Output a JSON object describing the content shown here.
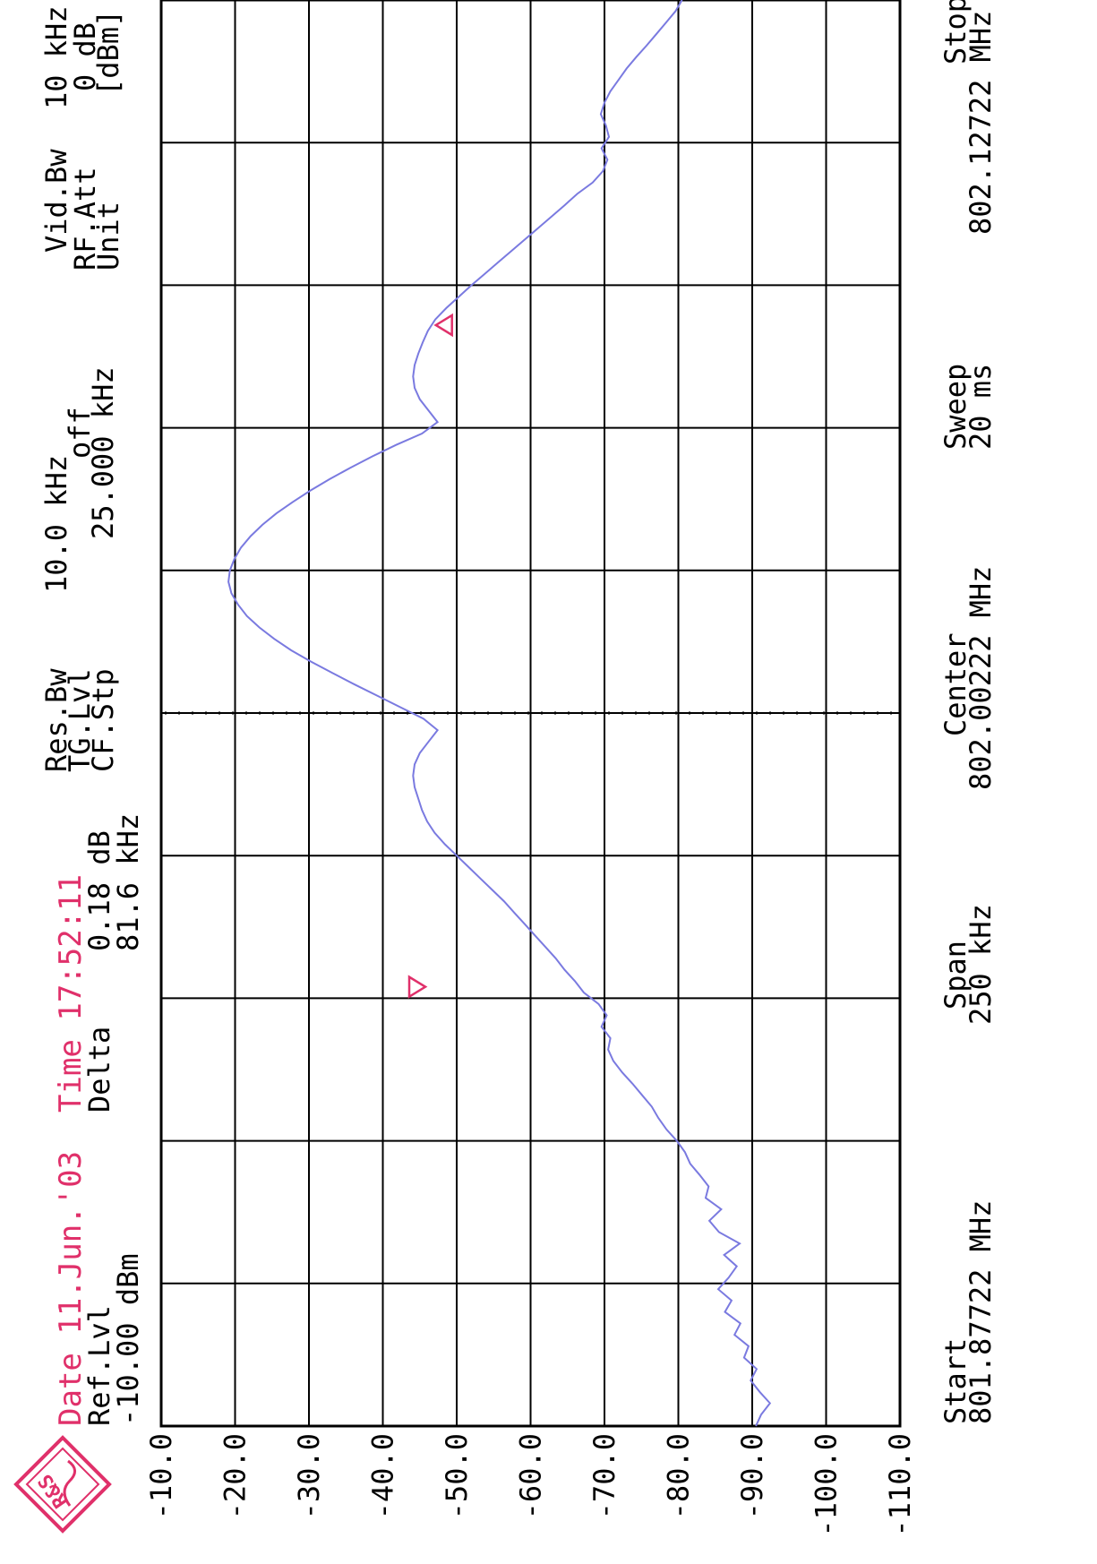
{
  "header": {
    "date": "Date 11.Jun.'03",
    "time": "Time 17:52:11",
    "ref_lvl_label": "Ref.Lvl",
    "ref_lvl_value": "-10.00 dBm",
    "delta_label": "Delta",
    "delta_db": "0.18 dB",
    "delta_freq": "81.6 kHz",
    "res_bw_label": "Res.Bw",
    "res_bw_value": "10.0 kHz",
    "tg_lvl_label": "TG.Lvl",
    "tg_lvl_value": "off",
    "cf_stp_label": "CF.Stp",
    "cf_stp_value": "25.000 kHz",
    "vid_bw_label": "Vid.Bw",
    "vid_bw_value": "10 kHz",
    "rf_att_label": "RF.Att",
    "rf_att_value": "0 dB",
    "unit_label": "Unit",
    "unit_value": "[dBm]"
  },
  "footer": {
    "start_label": "Start",
    "start_value": "801.87722 MHz",
    "span_label": "Span",
    "span_value": "250 kHz",
    "center_label": "Center",
    "center_value": "802.00222 MHz",
    "sweep_label": "Sweep",
    "sweep_value": "20 ms",
    "stop_label": "Stop",
    "stop_value": "802.12722 MHz"
  },
  "logo": {
    "text": "R&S"
  },
  "colors": {
    "trace": "#7a7ae0",
    "marker": "#e0306a",
    "highlight_text": "#e0306a",
    "grid": "#000000",
    "text": "#000000"
  },
  "chart_data": {
    "type": "line",
    "title": "",
    "xlabel": "",
    "ylabel": "[dBm]",
    "x_unit": "kHz offset from Start",
    "xlim": [
      0,
      250
    ],
    "ylim": [
      -110,
      -10
    ],
    "grid": true,
    "yticks": [
      "-10.0",
      "-20.0",
      "-30.0",
      "-40.0",
      "-50.0",
      "-60.0",
      "-70.0",
      "-80.0",
      "-90.0",
      "-100.0",
      "-110.0"
    ],
    "series": [
      {
        "x": [
          0,
          2,
          4,
          6,
          8,
          10,
          12,
          14,
          16,
          18,
          20,
          22,
          24,
          26,
          28,
          30,
          32,
          34,
          36,
          38,
          40,
          42,
          44,
          46,
          48,
          50,
          52,
          54,
          56,
          58,
          60,
          62,
          64,
          66,
          68,
          70,
          72,
          74,
          76,
          78,
          80,
          82,
          84,
          86,
          88,
          90,
          92,
          94,
          96,
          98,
          100,
          102,
          104,
          106,
          108,
          110,
          112,
          114,
          116,
          118,
          120,
          122,
          124,
          126,
          128,
          130,
          132,
          134,
          136,
          138,
          140,
          142,
          144,
          146,
          148,
          150,
          152,
          154,
          156,
          158,
          160,
          162,
          164,
          166,
          168,
          170,
          172,
          174,
          176,
          178,
          180,
          182,
          184,
          186,
          188,
          190,
          192,
          194,
          196,
          198,
          200,
          202,
          204,
          206,
          208,
          210,
          212,
          214,
          216,
          218,
          220,
          222,
          224,
          226,
          228,
          230,
          232,
          234,
          236,
          238,
          240,
          242,
          244,
          246,
          248,
          250
        ],
        "values": [
          -90.5,
          -91.2,
          -92.4,
          -91.0,
          -89.8,
          -90.6,
          -88.9,
          -89.5,
          -87.6,
          -88.4,
          -86.3,
          -87.2,
          -85.4,
          -86.8,
          -87.9,
          -86.2,
          -88.3,
          -85.5,
          -84.2,
          -85.8,
          -83.7,
          -84.1,
          -82.9,
          -81.6,
          -80.9,
          -79.8,
          -78.4,
          -77.3,
          -76.4,
          -75.1,
          -73.8,
          -72.4,
          -71.2,
          -70.5,
          -70.8,
          -69.6,
          -70.3,
          -69.2,
          -67.2,
          -66.0,
          -64.6,
          -63.4,
          -62.0,
          -60.6,
          -59.2,
          -57.8,
          -56.4,
          -54.8,
          -53.2,
          -51.6,
          -50.0,
          -48.4,
          -47.0,
          -46.0,
          -45.3,
          -44.8,
          -44.3,
          -44.1,
          -44.3,
          -45.0,
          -46.2,
          -47.4,
          -45.5,
          -42.4,
          -39.3,
          -36.2,
          -33.2,
          -30.3,
          -27.6,
          -25.3,
          -23.3,
          -21.6,
          -20.4,
          -19.5,
          -19.1,
          -19.3,
          -19.9,
          -20.8,
          -22.1,
          -23.7,
          -25.6,
          -27.8,
          -30.2,
          -32.8,
          -35.6,
          -38.6,
          -41.8,
          -45.3,
          -47.4,
          -46.2,
          -45.0,
          -44.3,
          -44.1,
          -44.3,
          -44.8,
          -45.4,
          -46.1,
          -47.1,
          -48.6,
          -50.3,
          -52.0,
          -53.8,
          -55.6,
          -57.4,
          -59.2,
          -61.0,
          -62.8,
          -64.6,
          -66.3,
          -68.4,
          -69.8,
          -70.4,
          -69.6,
          -70.6,
          -70.2,
          -69.5,
          -70.0,
          -70.8,
          -71.9,
          -73.0,
          -74.3,
          -75.7,
          -77.0,
          -78.3,
          -79.6,
          -80.5
        ]
      }
    ],
    "markers": [
      {
        "symbol": "▽",
        "x": 77,
        "y": -46.0
      },
      {
        "symbol": "△",
        "x": 193,
        "y": -49.6
      }
    ],
    "center_line_x": 125
  }
}
